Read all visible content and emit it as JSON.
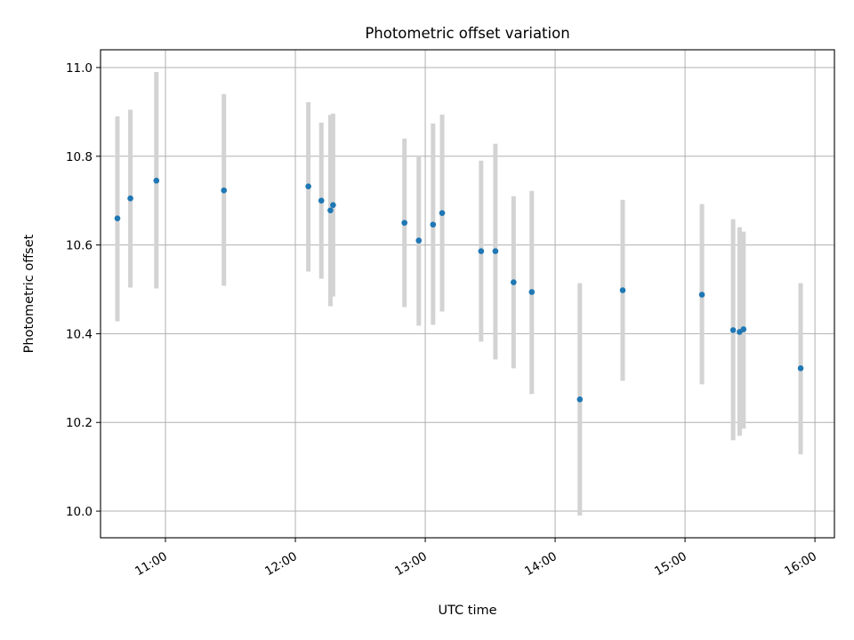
{
  "chart_data": {
    "type": "scatter",
    "title": "Photometric offset variation",
    "xlabel": "UTC time",
    "ylabel": "Photometric offset",
    "xlim": [
      10.5,
      16.15
    ],
    "ylim": [
      9.94,
      11.04
    ],
    "grid": true,
    "x_ticks": [
      {
        "value": 11,
        "label": "11:00"
      },
      {
        "value": 12,
        "label": "12:00"
      },
      {
        "value": 13,
        "label": "13:00"
      },
      {
        "value": 14,
        "label": "14:00"
      },
      {
        "value": 15,
        "label": "15:00"
      },
      {
        "value": 16,
        "label": "16:00"
      }
    ],
    "y_ticks": [
      {
        "value": 10.0,
        "label": "10.0"
      },
      {
        "value": 10.2,
        "label": "10.2"
      },
      {
        "value": 10.4,
        "label": "10.4"
      },
      {
        "value": 10.6,
        "label": "10.6"
      },
      {
        "value": 10.8,
        "label": "10.8"
      },
      {
        "value": 11.0,
        "label": "11.0"
      }
    ],
    "point_color": "#1f77b4",
    "errorbar_color": "#d3d3d3",
    "series": [
      {
        "name": "offset",
        "points": [
          {
            "x": 10.63,
            "y": 10.66,
            "ylo": 10.428,
            "yhi": 10.89
          },
          {
            "x": 10.73,
            "y": 10.705,
            "ylo": 10.504,
            "yhi": 10.905
          },
          {
            "x": 10.93,
            "y": 10.745,
            "ylo": 10.502,
            "yhi": 10.99
          },
          {
            "x": 11.45,
            "y": 10.723,
            "ylo": 10.508,
            "yhi": 10.94
          },
          {
            "x": 12.1,
            "y": 10.732,
            "ylo": 10.54,
            "yhi": 10.922
          },
          {
            "x": 12.2,
            "y": 10.7,
            "ylo": 10.524,
            "yhi": 10.876
          },
          {
            "x": 12.27,
            "y": 10.678,
            "ylo": 10.462,
            "yhi": 10.893
          },
          {
            "x": 12.29,
            "y": 10.69,
            "ylo": 10.484,
            "yhi": 10.896
          },
          {
            "x": 12.84,
            "y": 10.65,
            "ylo": 10.46,
            "yhi": 10.84
          },
          {
            "x": 12.95,
            "y": 10.61,
            "ylo": 10.418,
            "yhi": 10.802
          },
          {
            "x": 13.06,
            "y": 10.646,
            "ylo": 10.42,
            "yhi": 10.874
          },
          {
            "x": 13.13,
            "y": 10.672,
            "ylo": 10.45,
            "yhi": 10.894
          },
          {
            "x": 13.43,
            "y": 10.586,
            "ylo": 10.382,
            "yhi": 10.79
          },
          {
            "x": 13.54,
            "y": 10.586,
            "ylo": 10.342,
            "yhi": 10.828
          },
          {
            "x": 13.68,
            "y": 10.516,
            "ylo": 10.322,
            "yhi": 10.71
          },
          {
            "x": 13.82,
            "y": 10.494,
            "ylo": 10.264,
            "yhi": 10.722
          },
          {
            "x": 14.19,
            "y": 10.252,
            "ylo": 9.99,
            "yhi": 10.514
          },
          {
            "x": 14.52,
            "y": 10.498,
            "ylo": 10.294,
            "yhi": 10.702
          },
          {
            "x": 15.13,
            "y": 10.488,
            "ylo": 10.286,
            "yhi": 10.692
          },
          {
            "x": 15.37,
            "y": 10.408,
            "ylo": 10.16,
            "yhi": 10.658
          },
          {
            "x": 15.42,
            "y": 10.404,
            "ylo": 10.17,
            "yhi": 10.64
          },
          {
            "x": 15.45,
            "y": 10.41,
            "ylo": 10.186,
            "yhi": 10.63
          },
          {
            "x": 15.89,
            "y": 10.322,
            "ylo": 10.128,
            "yhi": 10.514
          }
        ]
      }
    ]
  }
}
